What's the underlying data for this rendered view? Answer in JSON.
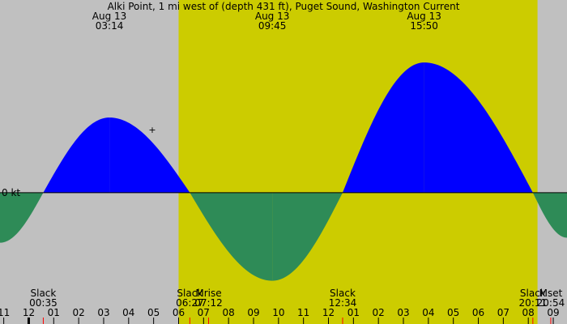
{
  "chart_data": {
    "type": "area",
    "title": "Alki Point, 1 mi west of (depth 431 ft), Puget Sound, Washington Current",
    "zero_label": "0 kt",
    "x_unit": "hours",
    "x_range": [
      -1.15,
      21.55
    ],
    "y_range_kt": [
      -1.15,
      1.6
    ],
    "colors": {
      "night": "#c0c0c0",
      "day": "#cccc00",
      "flood": "#0000ff",
      "ebb": "#2e8b57",
      "baseline": "#000000",
      "moon_tick": "#ff0000"
    },
    "daylight": {
      "start": 6.0,
      "end": 20.37
    },
    "peak_labels": [
      {
        "date": "Aug 13",
        "time": "03:14",
        "hour": 3.23
      },
      {
        "date": "Aug 13",
        "time": "09:45",
        "hour": 9.75
      },
      {
        "date": "Aug 13",
        "time": "15:50",
        "hour": 15.83
      }
    ],
    "events": [
      {
        "label": "Slack",
        "time": "00:35",
        "hour": 0.583
      },
      {
        "label": "Slack",
        "time": "06:27",
        "hour": 6.45
      },
      {
        "label": "Mrise",
        "time": "07:12",
        "hour": 7.2
      },
      {
        "label": "Slack",
        "time": "12:34",
        "hour": 12.567
      },
      {
        "label": "Slack",
        "time": "20:11",
        "hour": 20.183
      },
      {
        "label": "Mset",
        "time": "20:54",
        "hour": 20.9
      }
    ],
    "series": [
      {
        "points": [
          {
            "hour": -1.15,
            "kt": -0.5
          },
          {
            "hour": 0.583,
            "kt": 0
          },
          {
            "hour": 3.23,
            "kt": 0.75
          },
          {
            "hour": 6.45,
            "kt": 0
          },
          {
            "hour": 9.75,
            "kt": -0.88
          },
          {
            "hour": 12.567,
            "kt": 0
          },
          {
            "hour": 15.83,
            "kt": 1.3
          },
          {
            "hour": 20.183,
            "kt": 0
          },
          {
            "hour": 21.55,
            "kt": -0.45
          }
        ]
      }
    ],
    "hour_ticks": [
      {
        "label": "11",
        "hour": -1
      },
      {
        "label": "12",
        "hour": 0
      },
      {
        "label": "01",
        "hour": 1
      },
      {
        "label": "02",
        "hour": 2
      },
      {
        "label": "03",
        "hour": 3
      },
      {
        "label": "04",
        "hour": 4
      },
      {
        "label": "05",
        "hour": 5
      },
      {
        "label": "06",
        "hour": 6
      },
      {
        "label": "07",
        "hour": 7
      },
      {
        "label": "08",
        "hour": 8
      },
      {
        "label": "09",
        "hour": 9
      },
      {
        "label": "10",
        "hour": 10
      },
      {
        "label": "11",
        "hour": 11
      },
      {
        "label": "12",
        "hour": 12
      },
      {
        "label": "01",
        "hour": 13
      },
      {
        "label": "02",
        "hour": 14
      },
      {
        "label": "03",
        "hour": 15
      },
      {
        "label": "04",
        "hour": 16
      },
      {
        "label": "05",
        "hour": 17
      },
      {
        "label": "06",
        "hour": 18
      },
      {
        "label": "07",
        "hour": 19
      },
      {
        "label": "08",
        "hour": 20
      },
      {
        "label": "09",
        "hour": 21
      }
    ],
    "midnight_hour": 0
  }
}
